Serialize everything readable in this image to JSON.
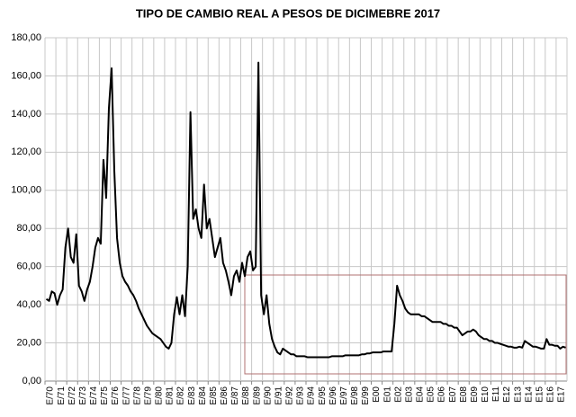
{
  "chart_data": {
    "type": "line",
    "title": "TIPO DE CAMBIO REAL A PESOS DE DICIMEBRE 2017",
    "categories": [
      "E/70",
      null,
      null,
      null,
      "E/71",
      null,
      null,
      null,
      "E/72",
      null,
      null,
      null,
      "E/73",
      null,
      null,
      null,
      "E/74",
      null,
      null,
      null,
      "E/75",
      null,
      null,
      null,
      "E/76",
      null,
      null,
      null,
      "E/77",
      null,
      null,
      null,
      "E/78",
      null,
      null,
      null,
      "E/79",
      null,
      null,
      null,
      "E/80",
      null,
      null,
      null,
      "E/81",
      null,
      null,
      null,
      "E/82",
      null,
      null,
      null,
      "E/83",
      null,
      null,
      null,
      "E/84",
      null,
      null,
      null,
      "E/85",
      null,
      null,
      null,
      "E/86",
      null,
      null,
      null,
      "E/87",
      null,
      null,
      null,
      "E/88",
      null,
      null,
      null,
      "E/89",
      null,
      null,
      null,
      "E/90",
      null,
      null,
      null,
      "E/91",
      null,
      null,
      null,
      "E/92",
      null,
      null,
      null,
      "E/93",
      null,
      null,
      null,
      "E/94",
      null,
      null,
      null,
      "E/95",
      null,
      null,
      null,
      "E/96",
      null,
      null,
      null,
      "E/97",
      null,
      null,
      null,
      "E/98",
      null,
      null,
      null,
      "E/99",
      null,
      null,
      null,
      "E00",
      null,
      null,
      null,
      "E01",
      null,
      null,
      null,
      "E02",
      null,
      null,
      null,
      "E03",
      null,
      null,
      null,
      "E04",
      null,
      null,
      null,
      "E05",
      null,
      null,
      null,
      "E06",
      null,
      null,
      null,
      "E07",
      null,
      null,
      null,
      "E08",
      null,
      null,
      null,
      "E09",
      null,
      null,
      null,
      "E10",
      null,
      null,
      null,
      "E11",
      null,
      null,
      null,
      "E12",
      null,
      null,
      null,
      "E13",
      null,
      null,
      null,
      "E14",
      null,
      null,
      null,
      "E15",
      null,
      null,
      null,
      "E16",
      null,
      null,
      null,
      "E17",
      null,
      null,
      null
    ],
    "values": [
      43,
      42,
      47,
      46,
      40,
      45,
      48,
      70,
      80,
      65,
      62,
      77,
      50,
      47,
      42,
      48,
      52,
      60,
      70,
      75,
      72,
      116,
      96,
      143,
      164,
      110,
      75,
      62,
      55,
      52,
      50,
      47,
      45,
      42,
      38,
      35,
      32,
      29,
      27,
      25,
      24,
      23,
      22,
      20,
      18,
      17,
      20,
      35,
      44,
      35,
      45,
      34,
      60,
      141,
      85,
      90,
      80,
      75,
      103,
      80,
      85,
      75,
      65,
      70,
      75,
      62,
      58,
      52,
      45,
      55,
      58,
      52,
      62,
      55,
      65,
      68,
      58,
      60,
      167,
      45,
      35,
      45,
      30,
      22,
      18,
      15,
      14,
      17,
      16,
      15,
      14,
      14,
      13,
      13,
      13,
      13,
      12.5,
      12.5,
      12.5,
      12.5,
      12.5,
      12.5,
      12.5,
      12.5,
      12.5,
      13,
      13,
      13,
      13,
      13,
      13.5,
      13.5,
      13.5,
      13.5,
      13.5,
      13.5,
      14,
      14,
      14.5,
      14.5,
      15,
      15,
      15,
      15,
      15.5,
      15.5,
      15.5,
      15.5,
      30,
      50,
      45,
      42,
      38,
      36,
      35,
      35,
      35,
      35,
      34,
      34,
      33,
      32,
      31,
      31,
      31,
      31,
      30,
      30,
      29,
      29,
      28,
      28,
      26,
      24,
      25,
      26,
      26,
      27,
      26,
      24,
      23,
      22,
      22,
      21,
      21,
      20,
      20,
      19.5,
      19,
      18.5,
      18,
      18,
      17.5,
      17.5,
      18,
      17.5,
      21,
      20,
      19,
      18,
      18,
      17.5,
      17,
      17,
      22,
      19,
      19,
      18.5,
      18.5,
      17,
      18,
      17.5
    ],
    "color": "#000000",
    "ylim": [
      0,
      180
    ],
    "yticks": [
      {
        "value": 0,
        "label": "0,00"
      },
      {
        "value": 20,
        "label": "20,00"
      },
      {
        "value": 40,
        "label": "40,00"
      },
      {
        "value": 60,
        "label": "60,00"
      },
      {
        "value": 80,
        "label": "80,00"
      },
      {
        "value": 100,
        "label": "100,00"
      },
      {
        "value": 120,
        "label": "120,00"
      },
      {
        "value": 140,
        "label": "140,00"
      },
      {
        "value": 160,
        "label": "160,00"
      },
      {
        "value": 180,
        "label": "180,00"
      }
    ],
    "grid": true
  }
}
